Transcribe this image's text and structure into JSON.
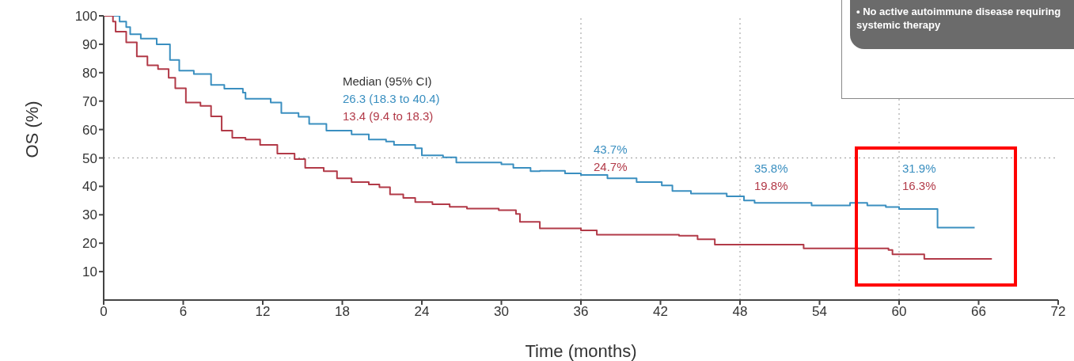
{
  "chart_data": {
    "type": "step",
    "xlabel": "Time (months)",
    "ylabel": "OS (%)",
    "xlim": [
      0,
      72
    ],
    "xticks": [
      0,
      6,
      12,
      18,
      24,
      30,
      36,
      42,
      48,
      54,
      60,
      66,
      72
    ],
    "ylim": [
      0,
      100
    ],
    "yticks": [
      10,
      20,
      30,
      40,
      50,
      60,
      70,
      80,
      90,
      100
    ],
    "grid": false,
    "legend": false,
    "marker": "none",
    "line_style": "solid",
    "series": [
      {
        "color": "#3a8fc0",
        "x": [
          0,
          1.2,
          1.7,
          2,
          2.8,
          4,
          5,
          5.7,
          6.8,
          8.1,
          9.1,
          10.5,
          10.7,
          12.6,
          13.4,
          14.7,
          15.5,
          16.8,
          18.7,
          20,
          21.3,
          21.9,
          23.5,
          24,
          25.6,
          26.6,
          30,
          30.9,
          32.2,
          32.9,
          34.8,
          36,
          38,
          40.2,
          42.1,
          42.9,
          44.3,
          47,
          48.3,
          49.1,
          53.4,
          56.3,
          57.6,
          59,
          60,
          62.9,
          65.7
        ],
        "values": [
          100,
          98,
          96,
          93.5,
          92,
          90,
          84.5,
          80.7,
          79.5,
          75.7,
          74.4,
          73,
          70.8,
          69.5,
          65.8,
          64.5,
          62,
          59.6,
          58.3,
          56.5,
          55.8,
          54.6,
          53.4,
          50.9,
          50.2,
          48.4,
          47.8,
          46.5,
          45.3,
          45.5,
          44.6,
          44,
          42.8,
          41.5,
          40.3,
          38.4,
          37.5,
          36.5,
          35,
          34.2,
          33.3,
          34.2,
          33.3,
          32.7,
          32,
          25.5,
          25.5
        ]
      },
      {
        "color": "#b23a48",
        "x": [
          0,
          0.7,
          0.9,
          1.7,
          2.5,
          3.3,
          4.1,
          4.9,
          5.4,
          6.2,
          7.3,
          8.1,
          8.9,
          9.7,
          10.7,
          11.8,
          13.1,
          14.4,
          15.2,
          16.6,
          17.6,
          18.7,
          20,
          20.8,
          21.6,
          22.6,
          23.5,
          24.8,
          26.1,
          27.4,
          29.8,
          31.1,
          31.4,
          32.9,
          36,
          37.2,
          43.4,
          44.8,
          46.1,
          52,
          52.8,
          56.3,
          59.2,
          59.5,
          61.9,
          67
        ],
        "values": [
          100,
          98,
          94.4,
          90.7,
          85.7,
          82.6,
          81.3,
          78.2,
          74.5,
          69.5,
          68.3,
          64.6,
          59.6,
          57.1,
          56.5,
          54.6,
          51.5,
          49.6,
          46.5,
          45.3,
          42.8,
          41.5,
          40.7,
          39.7,
          37.2,
          35.9,
          34.5,
          33.7,
          32.8,
          32.2,
          31.6,
          30.3,
          27.5,
          25.2,
          24.5,
          23,
          22.6,
          21.4,
          19.5,
          19.5,
          18.2,
          18.2,
          17.6,
          16.1,
          14.5,
          14.5
        ]
      }
    ],
    "ref_lines": [
      {
        "axis": "y",
        "value": 50,
        "line_style": "dotted"
      },
      {
        "axis": "x",
        "value": 36,
        "line_style": "dotted"
      },
      {
        "axis": "x",
        "value": 48,
        "line_style": "dotted"
      },
      {
        "axis": "x",
        "value": 60,
        "line_style": "dotted"
      }
    ],
    "annotations": [
      "Median (95% CI)",
      "26.3 (18.3 to 40.4)",
      "13.4 (9.4 to 18.3)",
      "• No active autoimmune disease requiring systemic therapy",
      "43.7%",
      "24.7%",
      "35.8%",
      "19.8%",
      "31.9%",
      "16.3%"
    ]
  }
}
